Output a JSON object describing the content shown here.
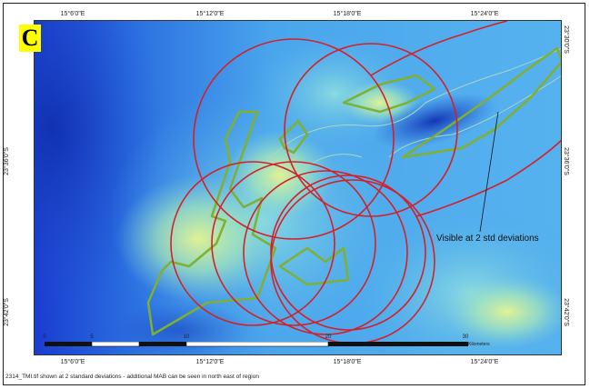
{
  "panel": {
    "label": "C"
  },
  "axes": {
    "top_ticks": [
      "15°6'0\"E",
      "15°12'0\"E",
      "15°18'0\"E",
      "15°24'0\"E"
    ],
    "bottom_ticks": [
      "15°6'0\"E",
      "15°12'0\"E",
      "15°18'0\"E",
      "15°24'0\"E"
    ],
    "left_ticks": [
      "23°36'0\"S",
      "23°42'0\"S"
    ],
    "right_ticks": [
      "23°30'0\"S",
      "23°36'0\"S",
      "23°42'0\"S"
    ]
  },
  "annotation": {
    "text": "Visible at 2 std deviations"
  },
  "scale_bar": {
    "labels": [
      "0",
      "5",
      "10",
      "20",
      "30"
    ],
    "unit": "Kilometers"
  },
  "caption": {
    "text": "2314_TMI.tif shown at 2 standard deviations - additional MAB can be seen in north east of region"
  },
  "colors": {
    "circle": "#d4202a",
    "polygon": "#7fb030",
    "inner_contour": "#9fd0b8",
    "background_deep": "#1a3fd0",
    "background_mid": "#3a9ae8",
    "background_light": "#8fd8d0",
    "highlight": "#d8f090"
  }
}
